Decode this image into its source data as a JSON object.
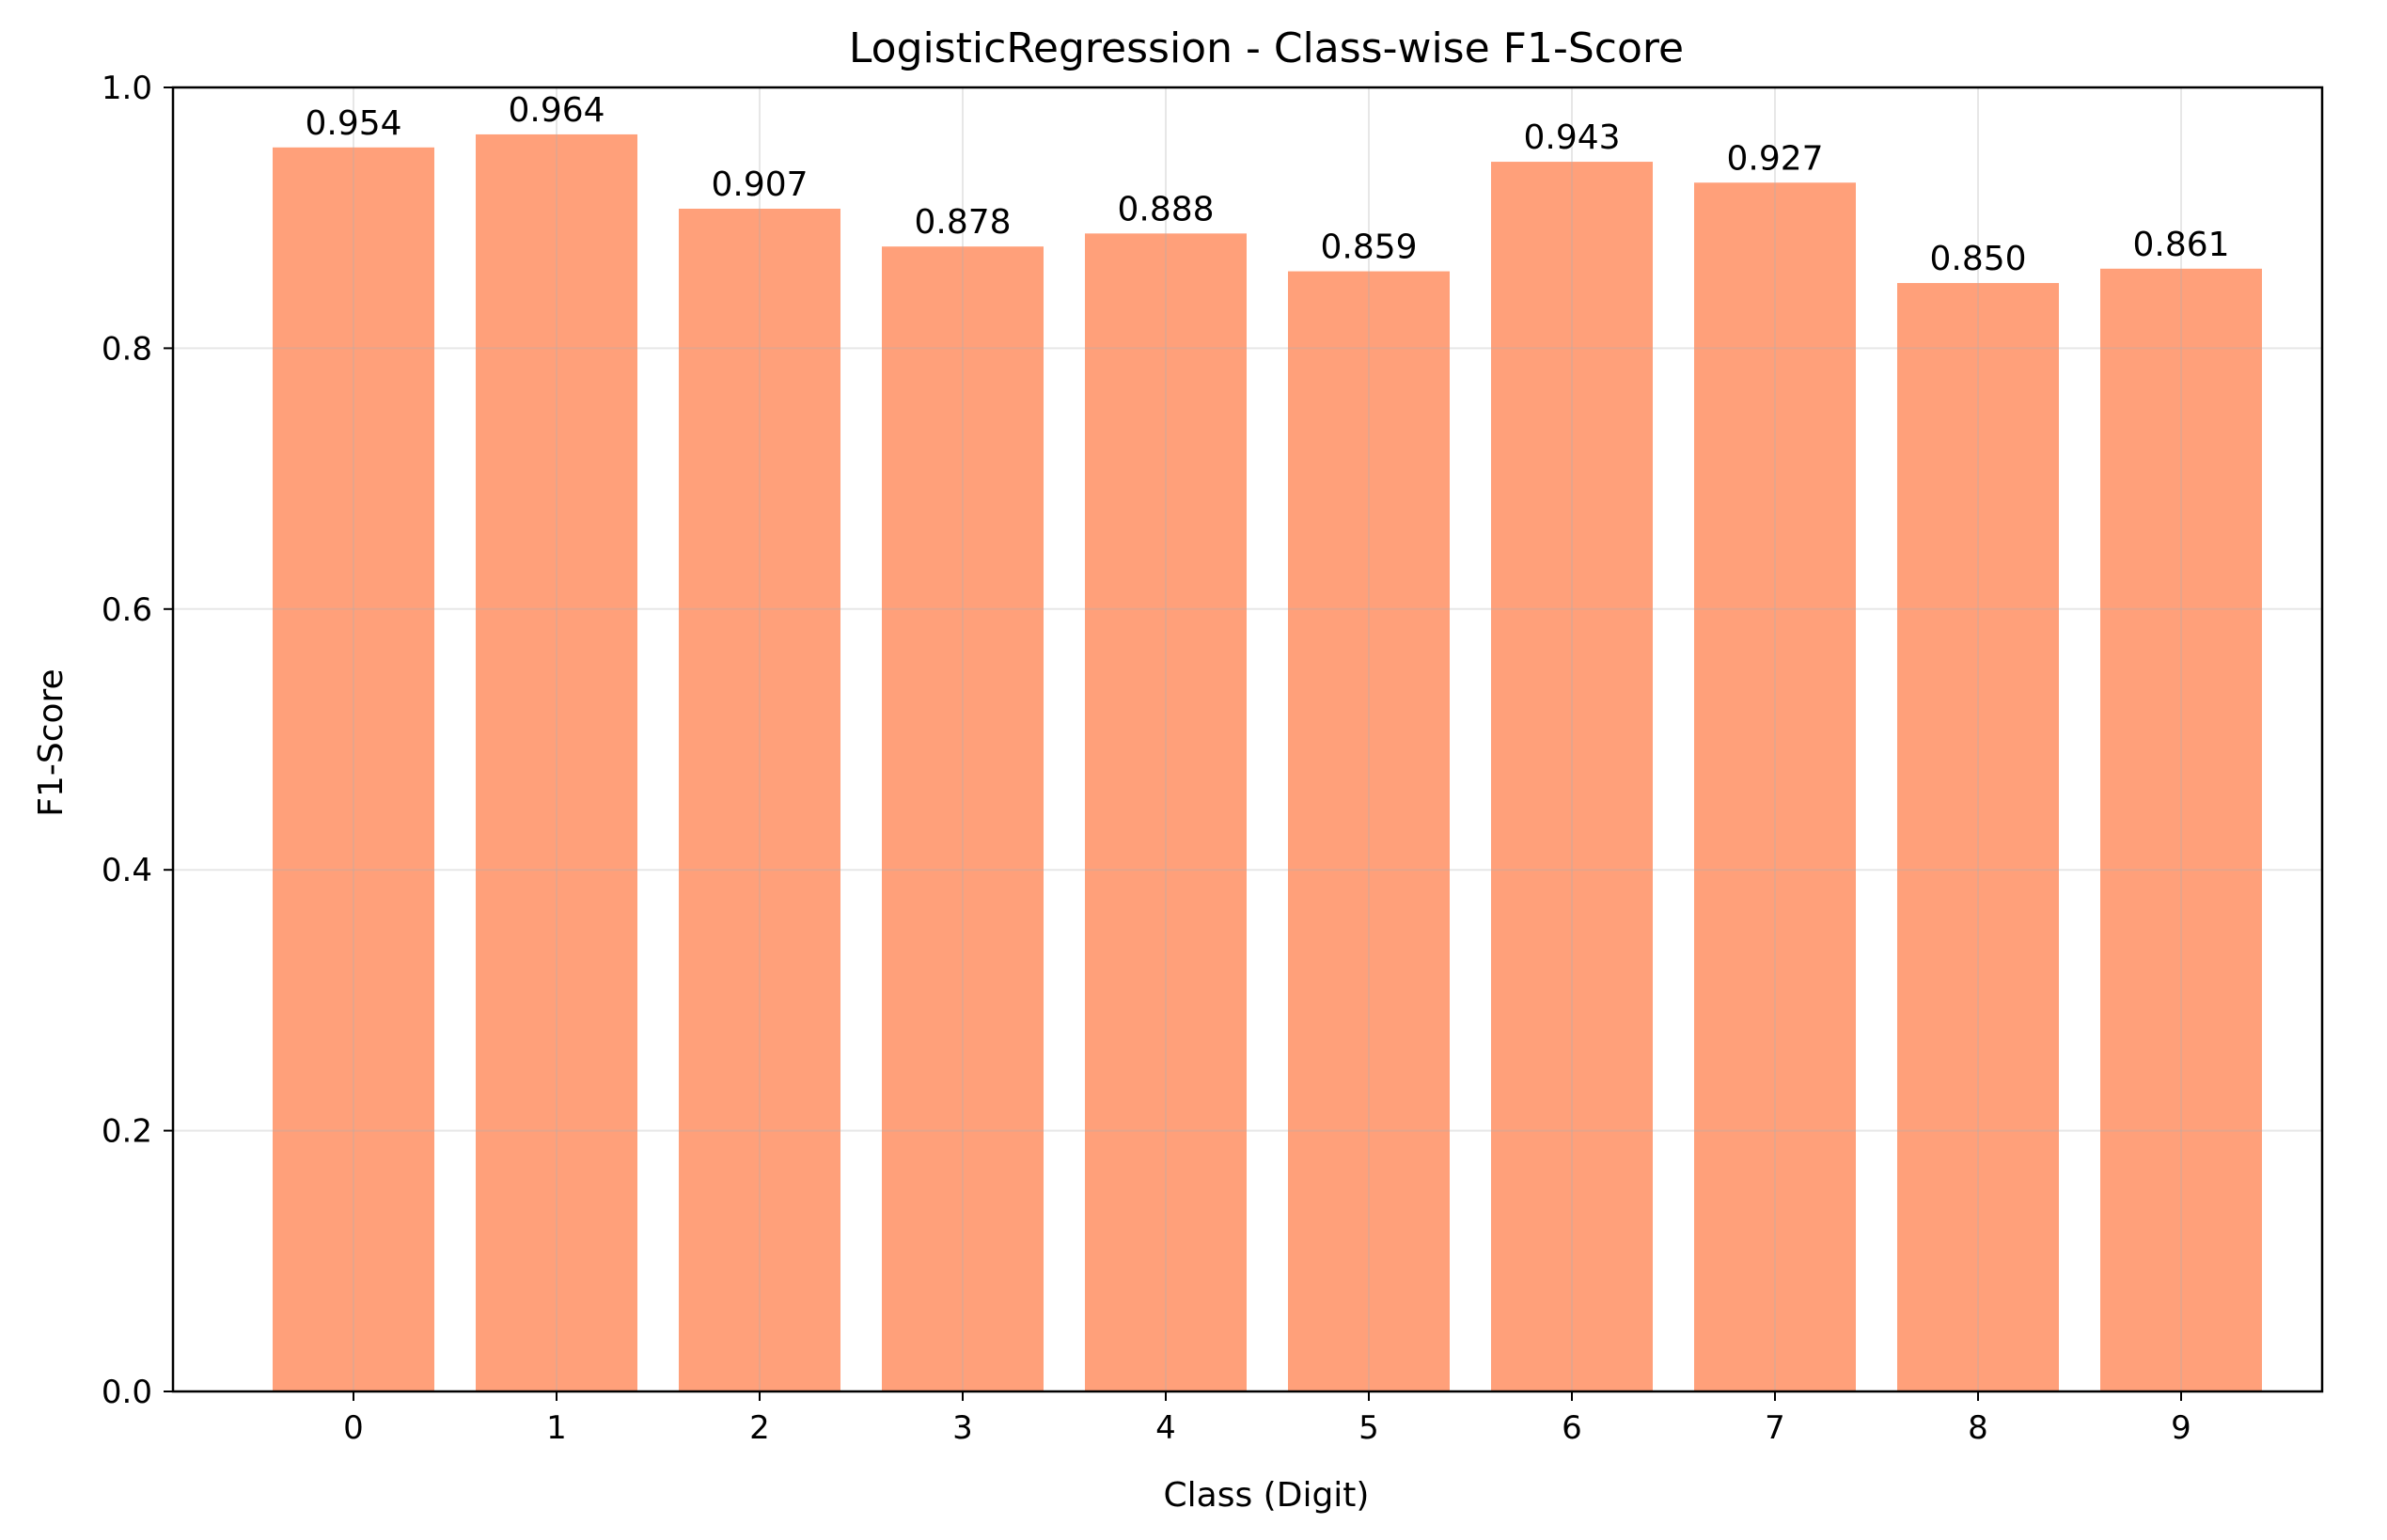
{
  "chart_data": {
    "type": "bar",
    "title": "LogisticRegression - Class-wise F1-Score",
    "xlabel": "Class (Digit)",
    "ylabel": "F1-Score",
    "categories": [
      "0",
      "1",
      "2",
      "3",
      "4",
      "5",
      "6",
      "7",
      "8",
      "9"
    ],
    "values": [
      0.954,
      0.964,
      0.907,
      0.878,
      0.888,
      0.859,
      0.943,
      0.927,
      0.85,
      0.861
    ],
    "data_labels": [
      "0.954",
      "0.964",
      "0.907",
      "0.878",
      "0.888",
      "0.859",
      "0.943",
      "0.927",
      "0.850",
      "0.861"
    ],
    "ylim": [
      0,
      1.0
    ],
    "yticks": [
      0.0,
      0.2,
      0.4,
      0.6,
      0.8,
      1.0
    ],
    "ytick_labels": [
      "0.0",
      "0.2",
      "0.4",
      "0.6",
      "0.8",
      "1.0"
    ],
    "grid": true,
    "bar_color": "#FFA07A"
  }
}
